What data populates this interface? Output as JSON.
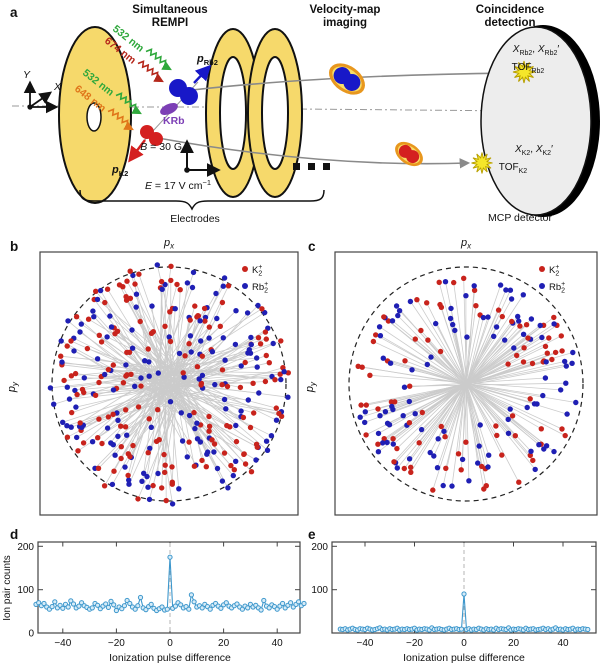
{
  "panel_a": {
    "label": "a",
    "headers": {
      "rempi1": "Simultaneous",
      "rempi2": "REMPI",
      "vmi1": "Velocity-map",
      "vmi2": "imaging",
      "coin1": "Coincidence",
      "coin2": "detection"
    },
    "coord": {
      "x": "X",
      "y": "Y",
      "z": "Z"
    },
    "lasers": {
      "rb_pump": "532 nm",
      "rb_dump": "674 nm",
      "k_pump": "532 nm",
      "k_dump": "648 nm"
    },
    "momenta": {
      "p": "p",
      "rb2": "Rb2",
      "k2": "K2"
    },
    "molecule": "KRb",
    "fields": {
      "b_sym": "B",
      "b_val": " = 30 G",
      "e_sym": "E",
      "e_val": " = 17 V cm",
      "e_sup": "−1"
    },
    "electrodes": "Electrodes",
    "detector": {
      "x": "X",
      "comma": ", ",
      "prime": "′",
      "tof": "TOF",
      "rb2": "Rb2",
      "k2": "K2",
      "mcp": "MCP detector"
    },
    "colors": {
      "electrode_yellow": "#F6D96B",
      "detector_gray": "#EDEDED",
      "k2_red": "#D42020",
      "rb2_blue": "#1818C8",
      "krb_purple": "#7C3FB5",
      "starburst_yellow": "#F5E62A"
    }
  },
  "chart_data": [
    {
      "id": "b",
      "panel_label": "b",
      "type": "scatter",
      "xlabel_main": "p",
      "xlabel_sub": "x",
      "ylabel_main": "p",
      "ylabel_sub": "y",
      "legend": [
        {
          "label_base": "K",
          "label_sub": "2",
          "label_sup": "+",
          "color": "#C8231C"
        },
        {
          "label_base": "Rb",
          "label_sub": "2",
          "label_sup": "+",
          "color": "#1F1FB4"
        }
      ],
      "n_pairs": 160,
      "seed": 20250707,
      "r_min": 0.08,
      "r_span": 0.95,
      "angle_jitter_deg": 22,
      "pair_line_color": "#C3C3C3",
      "boundary": "dashed circle"
    },
    {
      "id": "c",
      "panel_label": "c",
      "type": "scatter",
      "xlabel_main": "p",
      "xlabel_sub": "x",
      "ylabel_main": "p",
      "ylabel_sub": "y",
      "legend": [
        {
          "label_base": "K",
          "label_sub": "2",
          "label_sup": "+",
          "color": "#C8231C"
        },
        {
          "label_base": "Rb",
          "label_sub": "2",
          "label_sup": "+",
          "color": "#1F1FB4"
        }
      ],
      "n_pairs": 95,
      "seed": 424242,
      "r_min": 0.28,
      "r_span": 0.68,
      "angle_jitter_deg": 2,
      "pair_line_color": "#C3C3C3",
      "boundary": "dashed circle"
    },
    {
      "id": "d",
      "panel_label": "d",
      "type": "line",
      "xlabel": "Ionization pulse difference",
      "ylabel": "Ion pair counts",
      "xtick_labels": [
        "−40",
        "−20",
        "0",
        "20",
        "40"
      ],
      "xticks": [
        -40,
        -20,
        0,
        20,
        40
      ],
      "ytick_labels": [
        "0",
        "100",
        "200"
      ],
      "yticks": [
        0,
        100,
        200
      ],
      "ylim": [
        0,
        210
      ],
      "x_start": -50,
      "x_step": 1,
      "peak": {
        "x": 0,
        "value": 175
      },
      "line_color": "#3D97CC",
      "marker_fill": "#D6EBF7",
      "values": [
        66,
        70,
        63,
        68,
        60,
        55,
        61,
        72,
        58,
        64,
        57,
        66,
        60,
        74,
        67,
        58,
        62,
        70,
        63,
        59,
        55,
        58,
        68,
        64,
        56,
        62,
        67,
        59,
        73,
        65,
        52,
        60,
        56,
        63,
        75,
        68,
        60,
        55,
        63,
        82,
        58,
        54,
        61,
        66,
        57,
        52,
        56,
        60,
        53,
        55,
        175,
        57,
        62,
        70,
        65,
        58,
        61,
        55,
        88,
        72,
        60,
        63,
        58,
        66,
        61,
        55,
        64,
        68,
        62,
        57,
        65,
        70,
        62,
        58,
        63,
        67,
        60,
        55,
        62,
        58,
        66,
        60,
        64,
        58,
        53,
        75,
        62,
        58,
        65,
        61,
        55,
        62,
        68,
        58,
        64,
        70,
        60,
        66,
        72,
        63,
        68
      ]
    },
    {
      "id": "e",
      "panel_label": "e",
      "type": "line",
      "xlabel": "Ionization pulse difference",
      "ylabel": "",
      "xtick_labels": [
        "−40",
        "−20",
        "0",
        "20",
        "40"
      ],
      "xticks": [
        -40,
        -20,
        0,
        20,
        40
      ],
      "ytick_labels": [
        "100",
        "200"
      ],
      "yticks": [
        100,
        200
      ],
      "ylim": [
        0,
        210
      ],
      "x_start": -50,
      "x_step": 1,
      "peak": {
        "x": 0,
        "value": 90
      },
      "line_color": "#3D97CC",
      "marker_fill": "#D6EBF7",
      "values": [
        9,
        8,
        10,
        7,
        9,
        11,
        8,
        7,
        10,
        9,
        8,
        11,
        9,
        7,
        8,
        10,
        12,
        8,
        9,
        7,
        10,
        8,
        9,
        11,
        7,
        9,
        8,
        10,
        8,
        9,
        11,
        7,
        9,
        8,
        10,
        9,
        7,
        12,
        8,
        9,
        10,
        8,
        7,
        9,
        11,
        8,
        9,
        10,
        8,
        9,
        90,
        8,
        10,
        7,
        9,
        8,
        11,
        9,
        7,
        10,
        8,
        9,
        7,
        11,
        8,
        10,
        9,
        8,
        12,
        7,
        9,
        8,
        10,
        9,
        7,
        11,
        8,
        9,
        10,
        7,
        8,
        9,
        11,
        8,
        10,
        7,
        9,
        12,
        8,
        9,
        7,
        10,
        8,
        9,
        11,
        7,
        9,
        8,
        10,
        9,
        8
      ]
    }
  ]
}
